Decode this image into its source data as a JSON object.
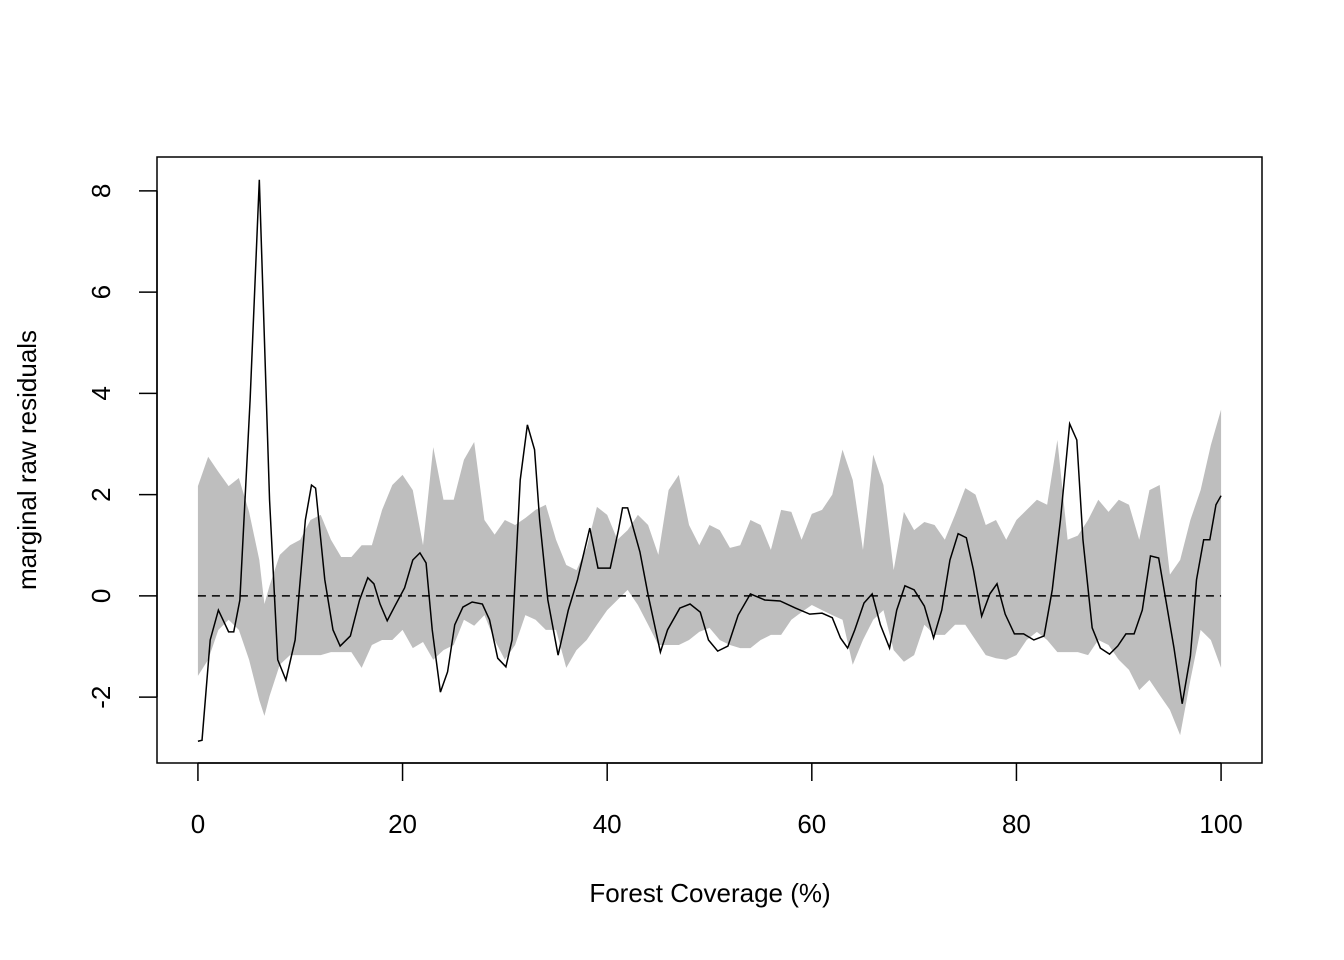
{
  "chart_data": {
    "type": "line",
    "xlabel": "Forest Coverage (%)",
    "ylabel": "marginal raw residuals",
    "xlim": [
      -4,
      104
    ],
    "ylim": [
      -3.3,
      8.67
    ],
    "xticks": [
      0,
      20,
      40,
      60,
      80,
      100
    ],
    "yticks": [
      -2,
      0,
      2,
      4,
      6,
      8
    ],
    "color": "#000000",
    "band_color": "#bebebe",
    "hline": 0,
    "x": [
      0,
      0.4,
      1.2,
      2.0,
      3.0,
      3.5,
      4.1,
      5.1,
      6.0,
      7.0,
      7.8,
      8.6,
      9.5,
      10.5,
      11.1,
      11.5,
      12.4,
      13.2,
      13.9,
      14.9,
      15.8,
      16.6,
      17.2,
      17.8,
      18.5,
      19.3,
      20.2,
      21.0,
      21.7,
      22.3,
      22.9,
      23.7,
      24.4,
      25.1,
      25.9,
      26.8,
      27.8,
      28.5,
      29.3,
      30.1,
      30.7,
      31.5,
      32.2,
      32.9,
      33.4,
      34.2,
      35.2,
      36.2,
      37.1,
      38.3,
      39.1,
      40.3,
      41.1,
      41.5,
      42.0,
      43.2,
      44.0,
      45.2,
      45.9,
      47.1,
      48.1,
      49.1,
      49.9,
      50.8,
      51.8,
      52.8,
      54.0,
      55.4,
      56.9,
      58.4,
      59.8,
      61.0,
      62.0,
      62.8,
      63.5,
      64.2,
      65.1,
      65.9,
      66.7,
      67.6,
      68.3,
      69.1,
      70.0,
      71.0,
      71.9,
      72.7,
      73.5,
      74.3,
      75.1,
      75.8,
      76.6,
      77.4,
      78.1,
      78.9,
      79.8,
      80.7,
      81.7,
      82.7,
      83.5,
      84.3,
      85.2,
      85.9,
      86.5,
      87.4,
      88.2,
      89.1,
      89.9,
      90.7,
      91.5,
      92.3,
      93.1,
      93.9,
      94.6,
      95.4,
      96.2,
      97.0,
      97.6,
      98.3,
      98.9,
      99.5,
      100
    ],
    "values": [
      -2.87,
      -2.85,
      -0.87,
      -0.28,
      -0.71,
      -0.71,
      -0.08,
      3.87,
      8.22,
      1.9,
      -1.26,
      -1.66,
      -0.87,
      1.5,
      2.19,
      2.13,
      0.32,
      -0.67,
      -0.99,
      -0.79,
      -0.08,
      0.36,
      0.24,
      -0.16,
      -0.49,
      -0.18,
      0.16,
      0.71,
      0.85,
      0.65,
      -0.67,
      -1.9,
      -1.5,
      -0.57,
      -0.22,
      -0.12,
      -0.16,
      -0.47,
      -1.23,
      -1.4,
      -0.87,
      2.29,
      3.38,
      2.89,
      1.5,
      -0.08,
      -1.17,
      -0.28,
      0.32,
      1.34,
      0.55,
      0.55,
      1.3,
      1.74,
      1.74,
      0.87,
      0.02,
      -1.11,
      -0.67,
      -0.24,
      -0.16,
      -0.32,
      -0.87,
      -1.09,
      -0.99,
      -0.38,
      0.04,
      -0.08,
      -0.1,
      -0.24,
      -0.36,
      -0.34,
      -0.43,
      -0.83,
      -1.03,
      -0.67,
      -0.14,
      0.04,
      -0.57,
      -1.03,
      -0.28,
      0.2,
      0.12,
      -0.2,
      -0.83,
      -0.28,
      0.71,
      1.23,
      1.15,
      0.51,
      -0.4,
      0.04,
      0.24,
      -0.36,
      -0.75,
      -0.75,
      -0.87,
      -0.79,
      0.12,
      1.5,
      3.4,
      3.08,
      1.11,
      -0.63,
      -1.03,
      -1.15,
      -0.99,
      -0.75,
      -0.75,
      -0.28,
      0.79,
      0.75,
      -0.08,
      -1.03,
      -2.13,
      -1.19,
      0.32,
      1.11,
      1.11,
      1.8,
      1.98
    ],
    "band_x": [
      0,
      1,
      2,
      3,
      4,
      5,
      6,
      6.5,
      7,
      8,
      9,
      10,
      11,
      12,
      13,
      14,
      15,
      16,
      17,
      18,
      19,
      20,
      21,
      22,
      23,
      24,
      25,
      26,
      27,
      28,
      29,
      30,
      31,
      32,
      33,
      34,
      35,
      36,
      37,
      38,
      39,
      40,
      41,
      42,
      43,
      44,
      45,
      46,
      47,
      48,
      49,
      50,
      51,
      52,
      53,
      54,
      55,
      56,
      57,
      58,
      59,
      60,
      61,
      62,
      63,
      64,
      65,
      66,
      67,
      68,
      69,
      70,
      71,
      72,
      73,
      74,
      75,
      76,
      77,
      78,
      79,
      80,
      81,
      82,
      83,
      84,
      85,
      86,
      87,
      88,
      89,
      90,
      91,
      92,
      93,
      94,
      95,
      96,
      97,
      98,
      99,
      100
    ],
    "band_upper": [
      2.17,
      2.75,
      2.45,
      2.17,
      2.33,
      1.66,
      0.71,
      -0.16,
      0.2,
      0.81,
      1.0,
      1.11,
      1.5,
      1.6,
      1.11,
      0.77,
      0.77,
      1.0,
      1.0,
      1.7,
      2.19,
      2.39,
      2.09,
      1.0,
      2.94,
      1.9,
      1.9,
      2.69,
      3.04,
      1.5,
      1.21,
      1.5,
      1.4,
      1.54,
      1.7,
      1.8,
      1.11,
      0.61,
      0.51,
      0.95,
      1.76,
      1.6,
      1.11,
      1.3,
      1.6,
      1.4,
      0.81,
      2.09,
      2.39,
      1.4,
      1.0,
      1.4,
      1.3,
      0.95,
      1.0,
      1.5,
      1.4,
      0.91,
      1.7,
      1.66,
      1.11,
      1.62,
      1.7,
      2.0,
      2.89,
      2.29,
      0.91,
      2.79,
      2.19,
      0.51,
      1.66,
      1.3,
      1.46,
      1.4,
      1.11,
      1.6,
      2.13,
      2.0,
      1.4,
      1.5,
      1.11,
      1.5,
      1.7,
      1.9,
      1.8,
      3.08,
      1.11,
      1.19,
      1.5,
      1.9,
      1.66,
      1.9,
      1.8,
      1.11,
      2.09,
      2.19,
      0.42,
      0.71,
      1.5,
      2.09,
      2.98,
      3.68
    ],
    "band_lower": [
      -1.58,
      -1.26,
      -0.67,
      -0.47,
      -0.67,
      -1.26,
      -2.06,
      -2.37,
      -1.98,
      -1.36,
      -1.17,
      -1.17,
      -1.17,
      -1.17,
      -1.11,
      -1.11,
      -1.11,
      -1.42,
      -0.97,
      -0.87,
      -0.87,
      -0.67,
      -1.03,
      -0.91,
      -1.26,
      -1.07,
      -0.97,
      -0.47,
      -0.59,
      -0.38,
      -0.87,
      -1.26,
      -0.97,
      -0.38,
      -0.47,
      -0.67,
      -0.67,
      -1.42,
      -1.07,
      -0.87,
      -0.57,
      -0.28,
      -0.08,
      0.12,
      -0.18,
      -0.57,
      -0.97,
      -0.97,
      -0.97,
      -0.87,
      -0.71,
      -0.63,
      -0.87,
      -0.97,
      -1.03,
      -1.03,
      -0.87,
      -0.77,
      -0.77,
      -0.47,
      -0.32,
      -0.18,
      -0.28,
      -0.38,
      -0.47,
      -1.36,
      -0.87,
      -0.47,
      -0.28,
      -1.07,
      -1.3,
      -1.17,
      -0.57,
      -0.77,
      -0.77,
      -0.57,
      -0.57,
      -0.87,
      -1.17,
      -1.23,
      -1.26,
      -1.17,
      -0.87,
      -0.71,
      -0.87,
      -1.11,
      -1.11,
      -1.11,
      -1.17,
      -0.87,
      -0.97,
      -1.26,
      -1.46,
      -1.86,
      -1.66,
      -1.96,
      -2.25,
      -2.75,
      -1.66,
      -0.67,
      -0.87,
      -1.42
    ]
  }
}
